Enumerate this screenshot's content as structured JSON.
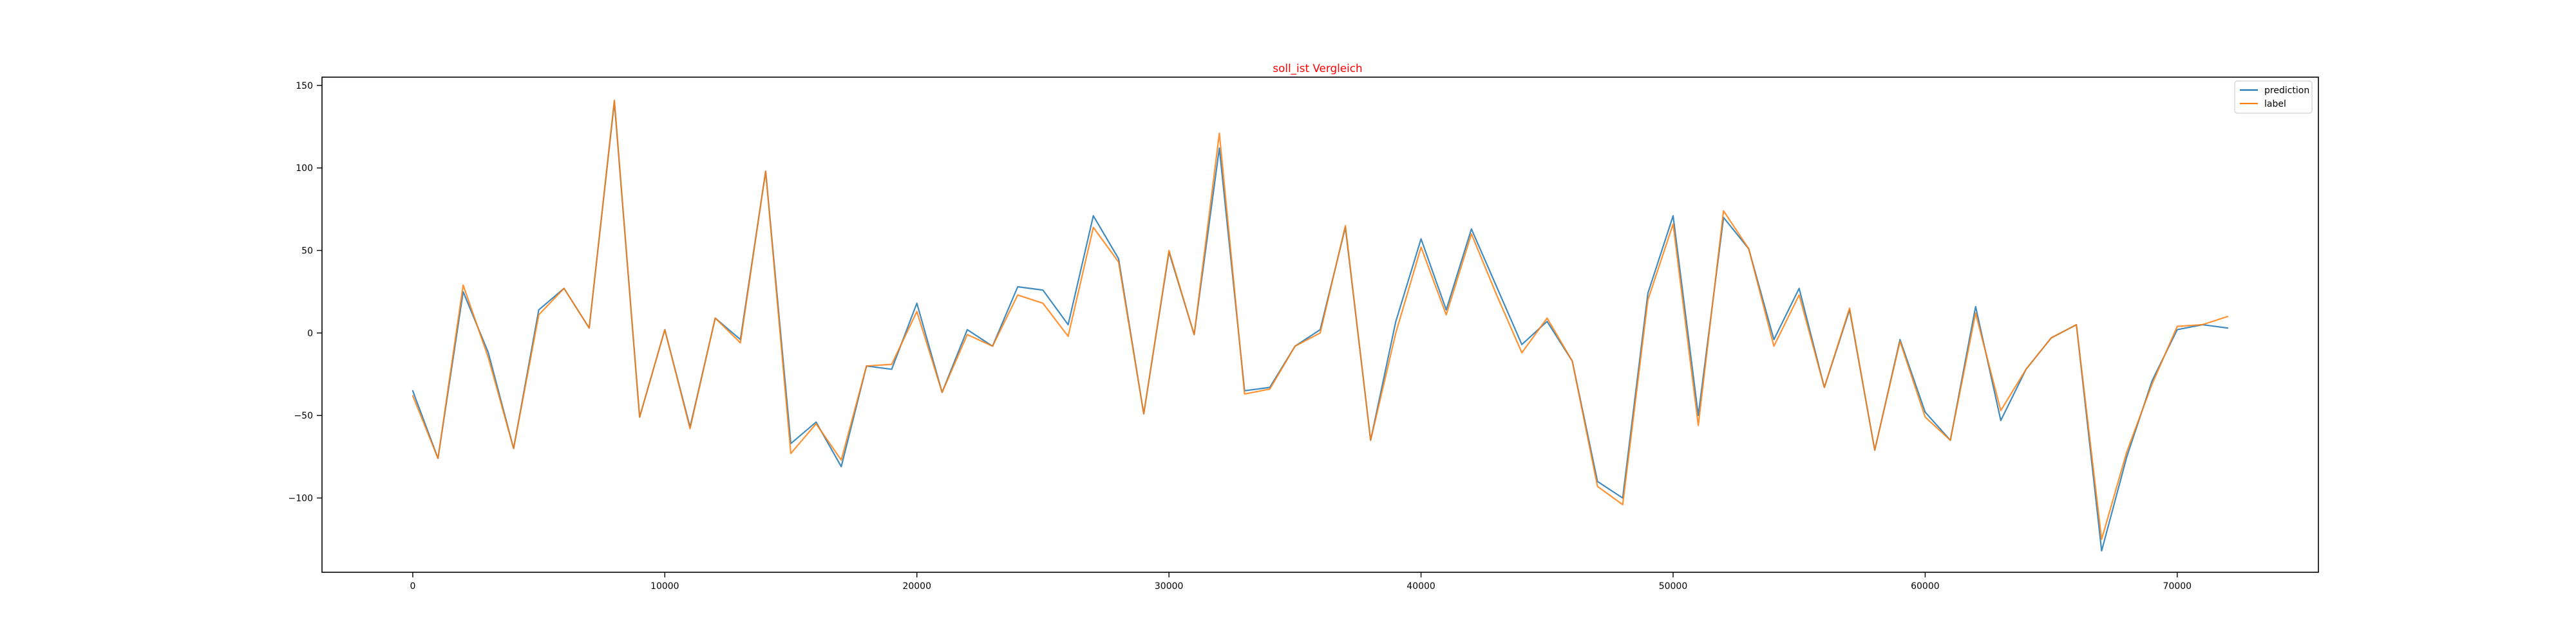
{
  "chart_data": {
    "type": "line",
    "title": "soll_ist Vergleich",
    "title_color": "#ff0000",
    "xlabel": "",
    "ylabel": "",
    "xlim": [
      -3600,
      75600
    ],
    "ylim": [
      -145,
      155
    ],
    "xticks": [
      0,
      10000,
      20000,
      30000,
      40000,
      50000,
      60000,
      70000
    ],
    "xtick_labels": [
      "0",
      "10000",
      "20000",
      "30000",
      "40000",
      "50000",
      "60000",
      "70000"
    ],
    "yticks": [
      -100,
      -50,
      0,
      50,
      100,
      150
    ],
    "ytick_labels": [
      "−100",
      "−50",
      "0",
      "50",
      "100",
      "150"
    ],
    "grid": false,
    "legend_position": "top-right",
    "x": [
      0,
      1000,
      2000,
      3000,
      4000,
      5000,
      6000,
      7000,
      8000,
      9000,
      10000,
      11000,
      12000,
      13000,
      14000,
      15000,
      16000,
      17000,
      18000,
      19000,
      20000,
      21000,
      22000,
      23000,
      24000,
      25000,
      26000,
      27000,
      28000,
      29000,
      30000,
      31000,
      32000,
      33000,
      34000,
      35000,
      36000,
      37000,
      38000,
      39000,
      40000,
      41000,
      42000,
      43000,
      44000,
      45000,
      46000,
      47000,
      48000,
      49000,
      50000,
      51000,
      52000,
      53000,
      54000,
      55000,
      56000,
      57000,
      58000,
      59000,
      60000,
      61000,
      62000,
      63000,
      64000,
      65000,
      66000,
      67000,
      68000,
      69000,
      70000,
      71000,
      72000
    ],
    "series": [
      {
        "name": "prediction",
        "color": "#1f77b4",
        "values": [
          -35,
          -76,
          25,
          -12,
          -70,
          14,
          27,
          3,
          140,
          -51,
          2,
          -57,
          9,
          -4,
          98,
          -67,
          -54,
          -81,
          -20,
          -22,
          18,
          -36,
          2,
          -8,
          28,
          26,
          5,
          71,
          45,
          -49,
          49,
          -1,
          112,
          -35,
          -33,
          -8,
          2,
          64,
          -65,
          7,
          57,
          14,
          63,
          28,
          -7,
          7,
          -17,
          -90,
          -100,
          24,
          71,
          -50,
          70,
          51,
          -4,
          27,
          -33,
          14,
          -71,
          -4,
          -48,
          -65,
          16,
          -53,
          -22,
          -3,
          5,
          -132,
          -75,
          -29,
          2,
          5,
          3
        ]
      },
      {
        "name": "label",
        "color": "#ff7f0e",
        "values": [
          -38,
          -76,
          29,
          -15,
          -70,
          11,
          27,
          3,
          141,
          -51,
          2,
          -58,
          9,
          -6,
          98,
          -73,
          -55,
          -77,
          -20,
          -19,
          13,
          -36,
          -1,
          -8,
          23,
          18,
          -2,
          64,
          43,
          -49,
          50,
          -1,
          121,
          -37,
          -34,
          -8,
          0,
          65,
          -65,
          0,
          52,
          11,
          60,
          23,
          -12,
          9,
          -17,
          -93,
          -104,
          20,
          66,
          -56,
          74,
          51,
          -8,
          23,
          -33,
          15,
          -71,
          -5,
          -51,
          -65,
          12,
          -47,
          -22,
          -3,
          5,
          -125,
          -72,
          -31,
          4,
          5,
          10
        ]
      }
    ]
  }
}
